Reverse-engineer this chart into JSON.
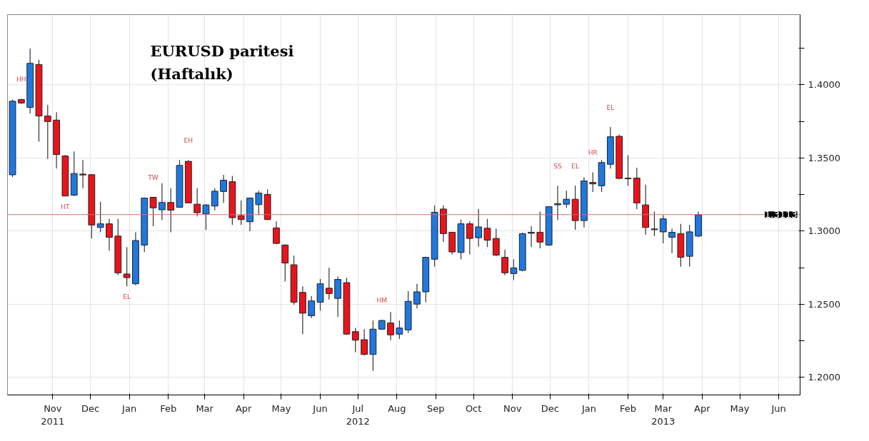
{
  "chart_data": {
    "type": "candlestick",
    "title": "EURUSD paritesi\n(Haftalık)",
    "x": [
      "2011-10-14",
      "2011-10-21",
      "2011-10-28",
      "2011-11-04",
      "2011-11-11",
      "2011-11-18",
      "2011-11-25",
      "2011-12-02",
      "2011-12-09",
      "2011-12-16",
      "2011-12-23",
      "2011-12-30",
      "2012-01-06",
      "2012-01-13",
      "2012-01-20",
      "2012-01-27",
      "2012-02-03",
      "2012-02-10",
      "2012-02-17",
      "2012-02-24",
      "2012-03-02",
      "2012-03-09",
      "2012-03-16",
      "2012-03-23",
      "2012-03-30",
      "2012-04-06",
      "2012-04-13",
      "2012-04-20",
      "2012-04-27",
      "2012-05-04",
      "2012-05-11",
      "2012-05-18",
      "2012-05-25",
      "2012-06-01",
      "2012-06-08",
      "2012-06-15",
      "2012-06-22",
      "2012-06-29",
      "2012-07-06",
      "2012-07-13",
      "2012-07-20",
      "2012-07-27",
      "2012-08-03",
      "2012-08-10",
      "2012-08-17",
      "2012-08-24",
      "2012-08-31",
      "2012-09-07",
      "2012-09-14",
      "2012-09-21",
      "2012-09-28",
      "2012-10-05",
      "2012-10-12",
      "2012-10-19",
      "2012-10-26",
      "2012-11-02",
      "2012-11-09",
      "2012-11-16",
      "2012-11-23",
      "2012-11-30",
      "2012-12-07",
      "2012-12-14",
      "2012-12-21",
      "2012-12-28",
      "2013-01-04",
      "2013-01-11",
      "2013-01-18",
      "2013-01-25",
      "2013-02-01",
      "2013-02-08",
      "2013-02-15",
      "2013-02-22",
      "2013-03-01",
      "2013-03-08",
      "2013-03-15",
      "2013-03-22",
      "2013-03-29",
      "2013-04-05",
      "2013-04-12"
    ],
    "ohlc": [
      [
        1.3385,
        1.39,
        1.337,
        1.3888
      ],
      [
        1.39,
        1.3905,
        1.387,
        1.3876
      ],
      [
        1.3846,
        1.4248,
        1.3804,
        1.4147
      ],
      [
        1.4139,
        1.4172,
        1.3612,
        1.3787
      ],
      [
        1.3787,
        1.3863,
        1.3494,
        1.3749
      ],
      [
        1.3759,
        1.3813,
        1.3427,
        1.3524
      ],
      [
        1.3514,
        1.352,
        1.324,
        1.324
      ],
      [
        1.3246,
        1.3545,
        1.324,
        1.3394
      ],
      [
        1.339,
        1.3486,
        1.3293,
        1.3384
      ],
      [
        1.3386,
        1.339,
        1.295,
        1.3042
      ],
      [
        1.3025,
        1.3201,
        1.2992,
        1.305
      ],
      [
        1.305,
        1.3084,
        1.2866,
        1.2958
      ],
      [
        1.2966,
        1.3084,
        1.27,
        1.2715
      ],
      [
        1.2707,
        1.2891,
        1.2623,
        1.2682
      ],
      [
        1.264,
        1.2992,
        1.263,
        1.2936
      ],
      [
        1.2905,
        1.323,
        1.2858,
        1.3226
      ],
      [
        1.3231,
        1.3235,
        1.3034,
        1.3159
      ],
      [
        1.3146,
        1.3327,
        1.3075,
        1.3196
      ],
      [
        1.3196,
        1.3293,
        1.2992,
        1.3143
      ],
      [
        1.3163,
        1.3486,
        1.316,
        1.3449
      ],
      [
        1.3477,
        1.3485,
        1.319,
        1.3193
      ],
      [
        1.3184,
        1.3293,
        1.3101,
        1.3126
      ],
      [
        1.3117,
        1.3185,
        1.3009,
        1.3179
      ],
      [
        1.3172,
        1.3293,
        1.3142,
        1.3273
      ],
      [
        1.3271,
        1.3385,
        1.3193,
        1.3348
      ],
      [
        1.3338,
        1.3377,
        1.3042,
        1.3092
      ],
      [
        1.3106,
        1.3209,
        1.3042,
        1.3079
      ],
      [
        1.3064,
        1.323,
        1.3,
        1.3226
      ],
      [
        1.3181,
        1.3276,
        1.3109,
        1.326
      ],
      [
        1.3251,
        1.3285,
        1.3075,
        1.3079
      ],
      [
        1.3022,
        1.3067,
        1.291,
        1.2916
      ],
      [
        1.2905,
        1.291,
        1.2657,
        1.2782
      ],
      [
        1.277,
        1.2833,
        1.2497,
        1.2514
      ],
      [
        1.2581,
        1.2623,
        1.2296,
        1.2439
      ],
      [
        1.2422,
        1.2556,
        1.2406,
        1.2523
      ],
      [
        1.2514,
        1.2673,
        1.2456,
        1.264
      ],
      [
        1.261,
        1.2749,
        1.2531,
        1.2573
      ],
      [
        1.254,
        1.269,
        1.2414,
        1.267
      ],
      [
        1.2648,
        1.2681,
        1.229,
        1.2296
      ],
      [
        1.2313,
        1.2338,
        1.2171,
        1.2255
      ],
      [
        1.2258,
        1.233,
        1.215,
        1.2157
      ],
      [
        1.2157,
        1.2389,
        1.2045,
        1.233
      ],
      [
        1.233,
        1.2395,
        1.2325,
        1.2389
      ],
      [
        1.2372,
        1.2447,
        1.2255,
        1.2291
      ],
      [
        1.2296,
        1.2389,
        1.2263,
        1.2338
      ],
      [
        1.2325,
        1.259,
        1.2305,
        1.252
      ],
      [
        1.2501,
        1.264,
        1.2472,
        1.2585
      ],
      [
        1.2585,
        1.2825,
        1.2514,
        1.2821
      ],
      [
        1.2808,
        1.3176,
        1.2757,
        1.3129
      ],
      [
        1.3151,
        1.3176,
        1.2925,
        1.2983
      ],
      [
        1.2992,
        1.2995,
        1.2841,
        1.2858
      ],
      [
        1.2854,
        1.3079,
        1.2808,
        1.305
      ],
      [
        1.305,
        1.3067,
        1.2841,
        1.295
      ],
      [
        1.2955,
        1.3151,
        1.2894,
        1.3029
      ],
      [
        1.302,
        1.3084,
        1.2891,
        1.2938
      ],
      [
        1.295,
        1.3017,
        1.283,
        1.2836
      ],
      [
        1.2821,
        1.2874,
        1.2698,
        1.2715
      ],
      [
        1.271,
        1.2808,
        1.2665,
        1.2749
      ],
      [
        1.2732,
        1.299,
        1.2725,
        1.2983
      ],
      [
        1.2985,
        1.3034,
        1.2891,
        1.2992
      ],
      [
        1.2992,
        1.3134,
        1.2883,
        1.2925
      ],
      [
        1.2905,
        1.317,
        1.29,
        1.3167
      ],
      [
        1.318,
        1.331,
        1.3075,
        1.3188
      ],
      [
        1.3184,
        1.3276,
        1.3159,
        1.3218
      ],
      [
        1.3218,
        1.331,
        1.3009,
        1.3072
      ],
      [
        1.3072,
        1.3368,
        1.3025,
        1.3343
      ],
      [
        1.3333,
        1.3402,
        1.3268,
        1.3323
      ],
      [
        1.331,
        1.3486,
        1.3268,
        1.3469
      ],
      [
        1.3457,
        1.3712,
        1.3427,
        1.3645
      ],
      [
        1.3648,
        1.366,
        1.3355,
        1.336
      ],
      [
        1.3362,
        1.3519,
        1.331,
        1.3358
      ],
      [
        1.3363,
        1.3434,
        1.3151,
        1.3193
      ],
      [
        1.3179,
        1.3318,
        1.2975,
        1.3025
      ],
      [
        1.3015,
        1.3134,
        1.2966,
        1.301
      ],
      [
        1.2995,
        1.3109,
        1.2916,
        1.3084
      ],
      [
        1.2958,
        1.3017,
        1.2849,
        1.2992
      ],
      [
        1.2983,
        1.305,
        1.2757,
        1.2821
      ],
      [
        1.2828,
        1.3042,
        1.2757,
        1.2995
      ],
      [
        1.2966,
        1.3134,
        1.296,
        1.3112
      ]
    ],
    "colors": [
      "#1f78e0",
      "#e8141c",
      "#1f78e0",
      "#e8141c",
      "#e8141c",
      "#e8141c",
      "#e8141c",
      "#1f78e0",
      "#e8141c",
      "#e8141c",
      "#1f78e0",
      "#e8141c",
      "#e8141c",
      "#e8141c",
      "#1f78e0",
      "#1f78e0",
      "#e8141c",
      "#1f78e0",
      "#e8141c",
      "#1f78e0",
      "#e8141c",
      "#e8141c",
      "#1f78e0",
      "#1f78e0",
      "#1f78e0",
      "#e8141c",
      "#e8141c",
      "#1f78e0",
      "#1f78e0",
      "#e8141c",
      "#e8141c",
      "#e8141c",
      "#e8141c",
      "#e8141c",
      "#1f78e0",
      "#1f78e0",
      "#e8141c",
      "#1f78e0",
      "#e8141c",
      "#e8141c",
      "#e8141c",
      "#1f78e0",
      "#1f78e0",
      "#e8141c",
      "#1f78e0",
      "#1f78e0",
      "#1f78e0",
      "#1f78e0",
      "#1f78e0",
      "#e8141c",
      "#e8141c",
      "#1f78e0",
      "#e8141c",
      "#1f78e0",
      "#e8141c",
      "#e8141c",
      "#e8141c",
      "#1f78e0",
      "#1f78e0",
      "#1f78e0",
      "#e8141c",
      "#1f78e0",
      "#1f78e0",
      "#1f78e0",
      "#e8141c",
      "#1f78e0",
      "#e8141c",
      "#1f78e0",
      "#1f78e0",
      "#e8141c",
      "#e8141c",
      "#e8141c",
      "#e8141c",
      "#e8141c",
      "#1f78e0",
      "#1f78e0",
      "#e8141c",
      "#1f78e0",
      "#1f78e0"
    ],
    "xlim": [
      "2011-10-10",
      "2013-07-02"
    ],
    "xticks": [
      {
        "value": "2011-11-15",
        "label": "Nov\n2011"
      },
      {
        "value": "2011-12-15",
        "label": "Dec"
      },
      {
        "value": "2012-01-15",
        "label": "Jan"
      },
      {
        "value": "2012-02-15",
        "label": "Feb"
      },
      {
        "value": "2012-03-15",
        "label": "Mar"
      },
      {
        "value": "2012-04-15",
        "label": "Apr"
      },
      {
        "value": "2012-05-15",
        "label": "May"
      },
      {
        "value": "2012-06-15",
        "label": "Jun"
      },
      {
        "value": "2012-07-15",
        "label": "Jul\n2012"
      },
      {
        "value": "2012-08-15",
        "label": "Aug"
      },
      {
        "value": "2012-09-15",
        "label": "Sep"
      },
      {
        "value": "2012-10-15",
        "label": "Oct"
      },
      {
        "value": "2012-11-15",
        "label": "Nov"
      },
      {
        "value": "2012-12-15",
        "label": "Dec"
      },
      {
        "value": "2013-01-15",
        "label": "Jan"
      },
      {
        "value": "2013-02-15",
        "label": "Feb"
      },
      {
        "value": "2013-03-15",
        "label": "Mar\n2013"
      },
      {
        "value": "2013-04-15",
        "label": "Apr"
      },
      {
        "value": "2013-05-15",
        "label": "May"
      },
      {
        "value": "2013-06-15",
        "label": "Jun"
      }
    ],
    "ylim": [
      1.188,
      1.448
    ],
    "yticks": [
      {
        "value": 1.2,
        "label": "1.2000"
      },
      {
        "value": 1.225,
        "label": null
      },
      {
        "value": 1.25,
        "label": "1.2500"
      },
      {
        "value": 1.275,
        "label": null
      },
      {
        "value": 1.3,
        "label": "1.3000"
      },
      {
        "value": 1.325,
        "label": null
      },
      {
        "value": 1.35,
        "label": "1.3500"
      },
      {
        "value": 1.375,
        "label": null
      },
      {
        "value": 1.4,
        "label": "1.4000"
      },
      {
        "value": 1.425,
        "label": null
      }
    ],
    "grid": true,
    "ref_lines": [
      {
        "axis": "y",
        "value": 1.3113,
        "label": "1.3113",
        "color": "#d07070"
      }
    ],
    "annotations": [
      {
        "text": "HH",
        "x": "2011-10-21",
        "y": 1.3905
      },
      {
        "text": "HT",
        "x": "2011-11-25",
        "y": 1.324
      },
      {
        "text": "EL",
        "x": "2012-01-13",
        "y": 1.2623
      },
      {
        "text": "TW",
        "x": "2012-02-03",
        "y": 1.3235
      },
      {
        "text": "EH",
        "x": "2012-03-02",
        "y": 1.3485
      },
      {
        "text": "HM",
        "x": "2012-08-03",
        "y": 1.2395
      },
      {
        "text": "SS",
        "x": "2012-12-21",
        "y": 1.331
      },
      {
        "text": "EL",
        "x": "2013-01-04",
        "y": 1.331
      },
      {
        "text": "HR",
        "x": "2013-01-18",
        "y": 1.3402
      },
      {
        "text": "EL",
        "x": "2013-02-01",
        "y": 1.3712
      }
    ]
  }
}
